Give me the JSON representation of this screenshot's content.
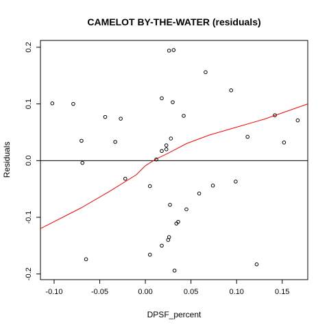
{
  "chart_data": {
    "type": "scatter",
    "title": "CAMELOT BY-THE-WATER (residuals)",
    "xlabel": "DPSF_percent",
    "ylabel": "Residuals",
    "xlim": [
      -0.115,
      0.178
    ],
    "ylim": [
      -0.21,
      0.212
    ],
    "x_ticks": [
      {
        "value": -0.1,
        "label": "-0.10"
      },
      {
        "value": -0.05,
        "label": "-0.05"
      },
      {
        "value": 0.0,
        "label": "0.00"
      },
      {
        "value": 0.05,
        "label": "0.05"
      },
      {
        "value": 0.1,
        "label": "0.10"
      },
      {
        "value": 0.15,
        "label": "0.15"
      }
    ],
    "y_ticks": [
      {
        "value": -0.2,
        "label": "-0.2"
      },
      {
        "value": -0.1,
        "label": "-0.1"
      },
      {
        "value": 0.0,
        "label": "0.0"
      },
      {
        "value": 0.1,
        "label": "0.1"
      },
      {
        "value": 0.2,
        "label": "0.2"
      }
    ],
    "reference_line": {
      "y": 0.0,
      "color": "#000000"
    },
    "points": [
      {
        "x": -0.102,
        "y": 0.101
      },
      {
        "x": -0.079,
        "y": 0.1
      },
      {
        "x": -0.07,
        "y": 0.035
      },
      {
        "x": -0.069,
        "y": -0.004
      },
      {
        "x": -0.065,
        "y": -0.174
      },
      {
        "x": -0.044,
        "y": 0.077
      },
      {
        "x": -0.033,
        "y": 0.033
      },
      {
        "x": -0.027,
        "y": 0.074
      },
      {
        "x": -0.022,
        "y": -0.032
      },
      {
        "x": 0.005,
        "y": -0.045
      },
      {
        "x": 0.005,
        "y": -0.166
      },
      {
        "x": 0.012,
        "y": 0.002
      },
      {
        "x": 0.018,
        "y": 0.017
      },
      {
        "x": 0.018,
        "y": 0.11
      },
      {
        "x": 0.018,
        "y": -0.15
      },
      {
        "x": 0.023,
        "y": 0.027
      },
      {
        "x": 0.023,
        "y": 0.02
      },
      {
        "x": 0.025,
        "y": -0.14
      },
      {
        "x": 0.026,
        "y": 0.194
      },
      {
        "x": 0.026,
        "y": -0.135
      },
      {
        "x": 0.027,
        "y": -0.078
      },
      {
        "x": 0.028,
        "y": 0.039
      },
      {
        "x": 0.03,
        "y": 0.103
      },
      {
        "x": 0.031,
        "y": 0.195
      },
      {
        "x": 0.032,
        "y": -0.194
      },
      {
        "x": 0.034,
        "y": -0.111
      },
      {
        "x": 0.036,
        "y": -0.108
      },
      {
        "x": 0.042,
        "y": 0.079
      },
      {
        "x": 0.045,
        "y": -0.086
      },
      {
        "x": 0.059,
        "y": -0.058
      },
      {
        "x": 0.066,
        "y": 0.156
      },
      {
        "x": 0.074,
        "y": -0.044
      },
      {
        "x": 0.094,
        "y": 0.124
      },
      {
        "x": 0.099,
        "y": -0.037
      },
      {
        "x": 0.112,
        "y": 0.042
      },
      {
        "x": 0.122,
        "y": -0.183
      },
      {
        "x": 0.142,
        "y": 0.08
      },
      {
        "x": 0.152,
        "y": 0.032
      },
      {
        "x": 0.167,
        "y": 0.071
      }
    ],
    "trend_line": {
      "color": "#ff0000",
      "points": [
        {
          "x": -0.115,
          "y": -0.12
        },
        {
          "x": -0.07,
          "y": -0.083
        },
        {
          "x": -0.04,
          "y": -0.055
        },
        {
          "x": -0.01,
          "y": -0.025
        },
        {
          "x": 0.0,
          "y": -0.009
        },
        {
          "x": 0.012,
          "y": 0.003
        },
        {
          "x": 0.025,
          "y": 0.013
        },
        {
          "x": 0.045,
          "y": 0.03
        },
        {
          "x": 0.07,
          "y": 0.045
        },
        {
          "x": 0.1,
          "y": 0.059
        },
        {
          "x": 0.13,
          "y": 0.073
        },
        {
          "x": 0.155,
          "y": 0.087
        },
        {
          "x": 0.178,
          "y": 0.1
        }
      ]
    }
  }
}
